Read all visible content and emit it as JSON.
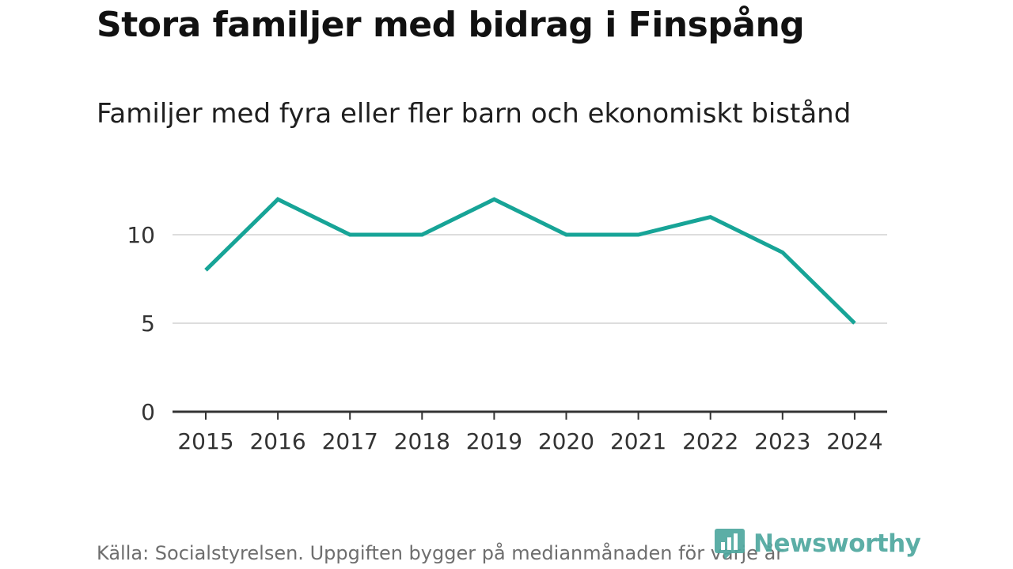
{
  "header": {
    "title": "Stora familjer med bidrag i Finspång",
    "subtitle": "Familjer med fyra eller fler barn och ekonomiskt bistånd"
  },
  "footer": {
    "source": "Källa: Socialstyrelsen. Uppgiften bygger på medianmånaden för varje år",
    "brand": "Newsworthy"
  },
  "colors": {
    "line": "#17a497",
    "grid": "#dddddd",
    "axis": "#333333",
    "brand": "#4fa89f"
  },
  "chart_data": {
    "type": "line",
    "x": [
      "2015",
      "2016",
      "2017",
      "2018",
      "2019",
      "2020",
      "2021",
      "2022",
      "2023",
      "2024"
    ],
    "series": [
      {
        "values": [
          8,
          12,
          10,
          10,
          12,
          10,
          10,
          11,
          9,
          5
        ]
      }
    ],
    "yticks": [
      0,
      5,
      10
    ],
    "ylim": [
      0,
      12
    ],
    "grid": true,
    "legend": "none"
  }
}
